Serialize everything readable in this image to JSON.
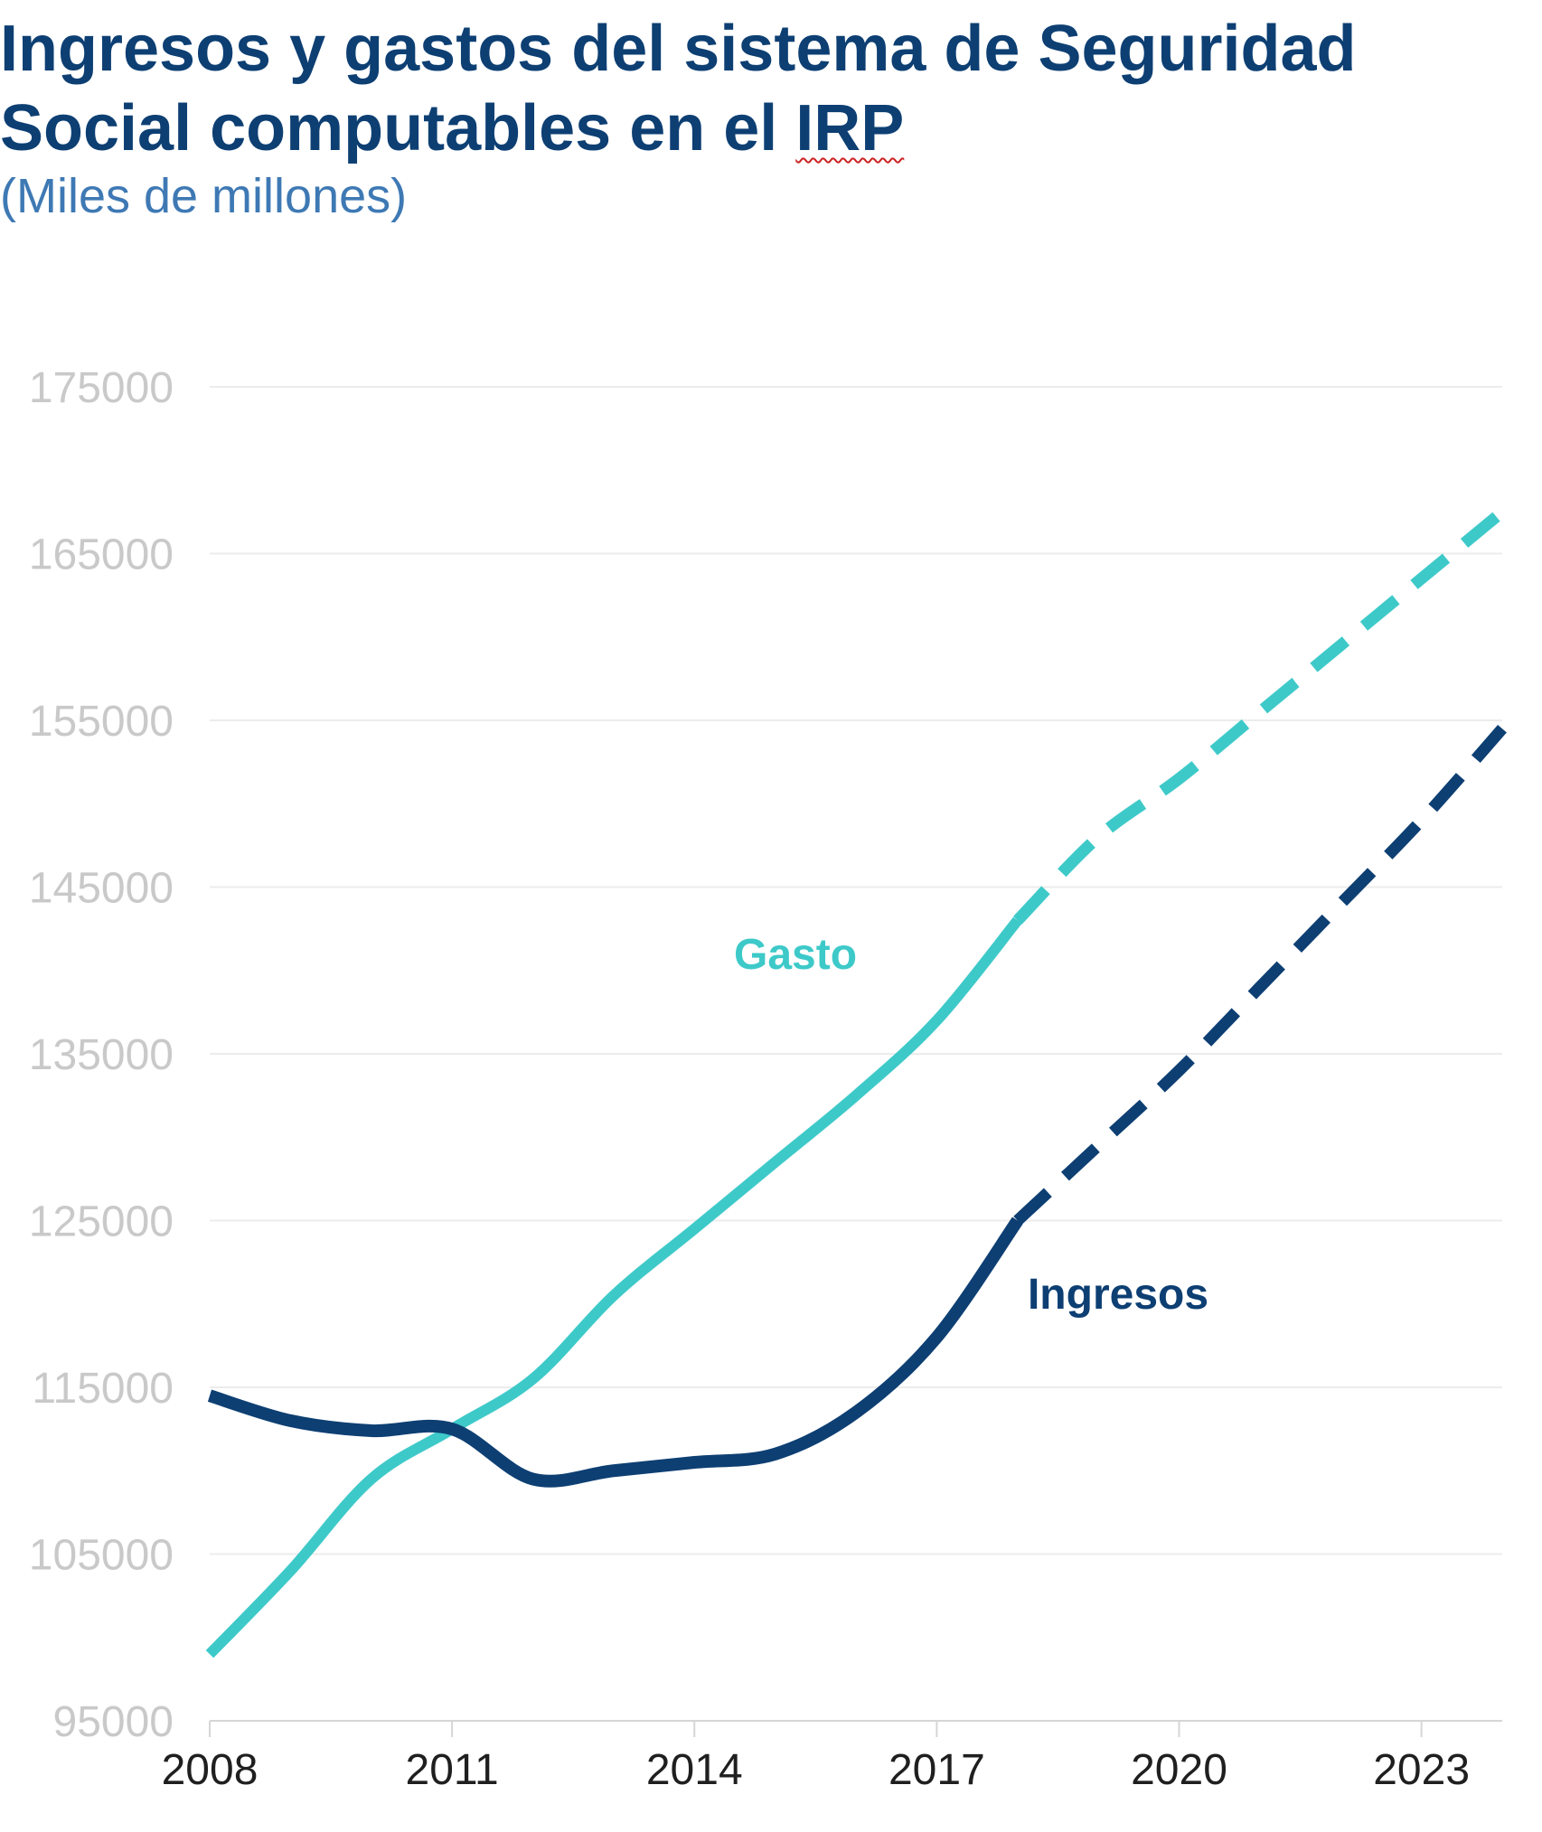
{
  "header": {
    "title_main": "Ingresos y gastos del sistema de Seguridad Social computables en el ",
    "title_irp": "IRP",
    "subtitle": "(Miles de millones)"
  },
  "colors": {
    "gasto": "#3ec9c9",
    "ingresos": "#0d3f73",
    "title": "#0d3f73",
    "subtitle": "#3e79b4",
    "grid": "#ececec",
    "ytick": "#c9c9c9"
  },
  "chart_data": {
    "type": "line",
    "title": "Ingresos y gastos del sistema de Seguridad Social computables en el IRP",
    "subtitle": "(Miles de millones)",
    "xlabel": "",
    "ylabel": "",
    "xlim": [
      2008,
      2024
    ],
    "ylim": [
      95000,
      175000
    ],
    "x_ticks": [
      "2008",
      "2011",
      "2014",
      "2017",
      "2020",
      "2023"
    ],
    "y_ticks": [
      "95000",
      "105000",
      "115000",
      "125000",
      "135000",
      "145000",
      "155000",
      "165000",
      "175000"
    ],
    "grid": true,
    "legend": "inline labels",
    "series": [
      {
        "name": "Gasto",
        "segments": [
          {
            "style": "solid",
            "x": [
              2008,
              2009,
              2010,
              2011,
              2012,
              2013,
              2014,
              2015,
              2016,
              2017,
              2018
            ],
            "y": [
              99000,
              104000,
              109500,
              112500,
              115500,
              120500,
              124500,
              128500,
              132500,
              137000,
              143000
            ]
          },
          {
            "style": "dashed",
            "x": [
              2018,
              2019,
              2020,
              2021,
              2022,
              2023,
              2024
            ],
            "y": [
              143000,
              148000,
              151500,
              155500,
              159500,
              163500,
              167500
            ]
          }
        ]
      },
      {
        "name": "Ingresos",
        "segments": [
          {
            "style": "solid",
            "x": [
              2008,
              2009,
              2010,
              2011,
              2012,
              2013,
              2014,
              2015,
              2016,
              2017,
              2018
            ],
            "y": [
              114500,
              113000,
              112400,
              112500,
              109500,
              110000,
              110500,
              111000,
              113500,
              118000,
              125000
            ]
          },
          {
            "style": "dashed",
            "x": [
              2018,
              2019,
              2020,
              2021,
              2022,
              2023,
              2024
            ],
            "y": [
              125000,
              129500,
              134000,
              139000,
              144000,
              149000,
              154500
            ]
          }
        ]
      }
    ]
  }
}
